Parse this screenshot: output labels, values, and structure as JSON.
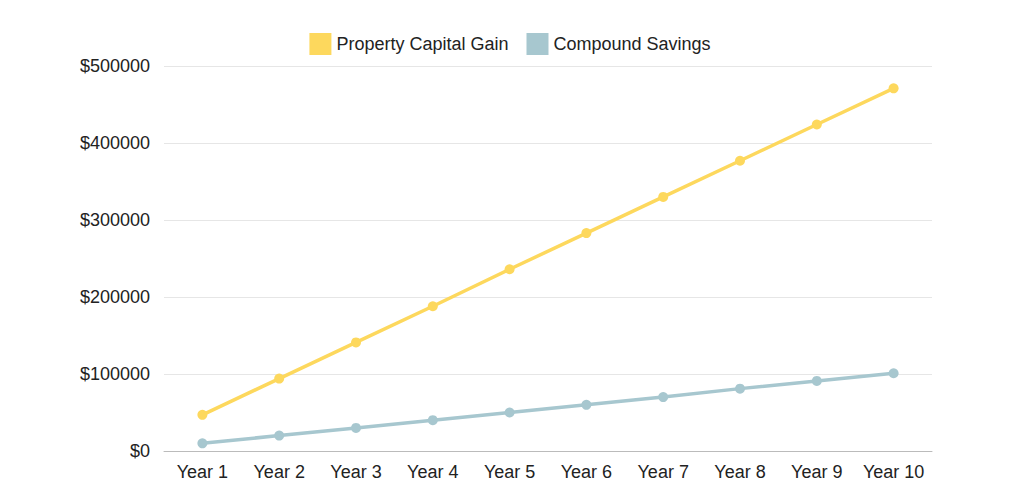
{
  "chart_data": {
    "type": "line",
    "categories": [
      "Year 1",
      "Year 2",
      "Year 3",
      "Year 4",
      "Year 5",
      "Year 6",
      "Year 7",
      "Year 8",
      "Year 9",
      "Year 10"
    ],
    "series": [
      {
        "name": "Property Capital Gain",
        "color": "#fdd85d",
        "marker": "circle",
        "line_style": "solid",
        "values": [
          47000,
          94000,
          141000,
          188000,
          236000,
          283000,
          330000,
          377000,
          424000,
          471000
        ]
      },
      {
        "name": "Compound Savings",
        "color": "#a7c7cf",
        "marker": "circle",
        "line_style": "solid",
        "values": [
          10000,
          20000,
          30000,
          40000,
          50000,
          60000,
          70000,
          81000,
          91000,
          101000
        ]
      }
    ],
    "ylim": [
      0,
      500000
    ],
    "yticks": [
      {
        "value": 0,
        "label": "$0"
      },
      {
        "value": 100000,
        "label": "$100000"
      },
      {
        "value": 200000,
        "label": "$200000"
      },
      {
        "value": 300000,
        "label": "$300000"
      },
      {
        "value": 400000,
        "label": "$400000"
      },
      {
        "value": 500000,
        "label": "$500000"
      }
    ],
    "grid": true,
    "legend": "top"
  }
}
